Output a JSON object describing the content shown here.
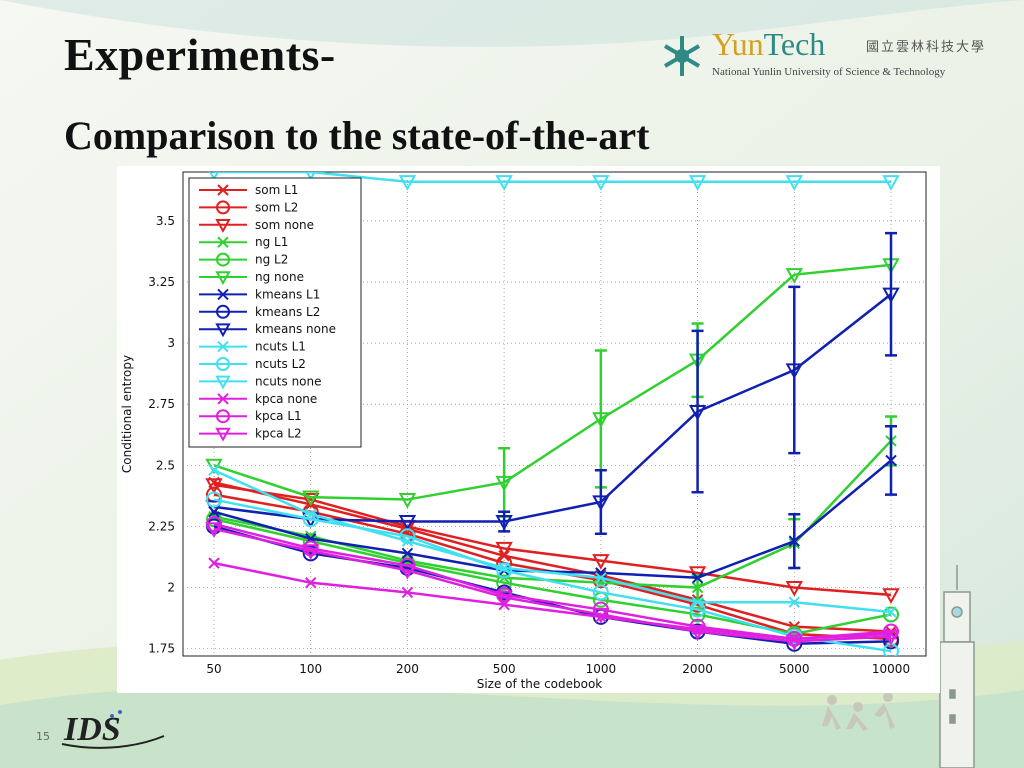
{
  "slide": {
    "title_line1": "Experiments-",
    "title_line2": "Comparison to the state-of-the-art",
    "page_number": "15",
    "logo": {
      "brand_yun": "Yun",
      "brand_tech": "Tech",
      "cn": "國立雲林科技大學",
      "en": "National Yunlin University of Science & Technology"
    }
  },
  "chart_data": {
    "type": "line",
    "xlabel": "Size of the codebook",
    "ylabel": "Conditional entropy",
    "categories": [
      "50",
      "100",
      "200",
      "500",
      "1000",
      "2000",
      "5000",
      "10000"
    ],
    "ylim": [
      1.72,
      3.7
    ],
    "yticks": [
      "1.75",
      "2",
      "2.25",
      "2.5",
      "2.75",
      "3",
      "3.25",
      "3.5"
    ],
    "ytick_values": [
      1.75,
      2.0,
      2.25,
      2.5,
      2.75,
      3.0,
      3.25,
      3.5
    ],
    "grid": true,
    "legend_position": "top-left",
    "series": [
      {
        "name": "som L1",
        "color": "#e02020",
        "marker": "x",
        "values": [
          2.43,
          2.34,
          2.24,
          2.13,
          2.05,
          1.95,
          1.84,
          1.82
        ]
      },
      {
        "name": "som L2",
        "color": "#e02020",
        "marker": "o",
        "values": [
          2.38,
          2.31,
          2.22,
          2.1,
          2.03,
          1.93,
          1.81,
          1.79
        ]
      },
      {
        "name": "som none",
        "color": "#e02020",
        "marker": "v",
        "values": [
          2.42,
          2.36,
          2.25,
          2.16,
          2.11,
          2.06,
          2.0,
          1.97
        ]
      },
      {
        "name": "ng L1",
        "color": "#30d030",
        "marker": "x",
        "values": [
          2.29,
          2.21,
          2.11,
          2.04,
          2.02,
          2.0,
          2.18,
          2.6
        ],
        "err": [
          0,
          0,
          0,
          0,
          0,
          0.05,
          0.1,
          0.1
        ]
      },
      {
        "name": "ng L2",
        "color": "#30d030",
        "marker": "o",
        "values": [
          2.28,
          2.19,
          2.1,
          2.02,
          1.95,
          1.89,
          1.81,
          1.89
        ]
      },
      {
        "name": "ng none",
        "color": "#30d030",
        "marker": "v",
        "values": [
          2.5,
          2.37,
          2.36,
          2.43,
          2.69,
          2.93,
          3.28,
          3.32
        ],
        "err": [
          0,
          0,
          0,
          0.14,
          0.28,
          0.15,
          0,
          0
        ]
      },
      {
        "name": "kmeans L1",
        "color": "#1020b0",
        "marker": "x",
        "values": [
          2.31,
          2.2,
          2.14,
          2.07,
          2.06,
          2.04,
          2.19,
          2.52
        ],
        "err": [
          0,
          0,
          0,
          0,
          0,
          0,
          0.11,
          0.14
        ]
      },
      {
        "name": "kmeans L2",
        "color": "#1020b0",
        "marker": "o",
        "values": [
          2.25,
          2.14,
          2.08,
          1.98,
          1.88,
          1.82,
          1.77,
          1.78
        ]
      },
      {
        "name": "kmeans none",
        "color": "#1020b0",
        "marker": "v",
        "values": [
          2.33,
          2.28,
          2.27,
          2.27,
          2.35,
          2.72,
          2.89,
          3.2
        ],
        "err": [
          0,
          0,
          0,
          0.04,
          0.13,
          0.33,
          0.34,
          0.25
        ]
      },
      {
        "name": "ncuts L1",
        "color": "#40e0f0",
        "marker": "x",
        "values": [
          2.48,
          2.3,
          2.19,
          2.08,
          2.04,
          1.94,
          1.94,
          1.9
        ]
      },
      {
        "name": "ncuts L2",
        "color": "#40e0f0",
        "marker": "o",
        "values": [
          2.36,
          2.28,
          2.21,
          2.07,
          1.98,
          1.91,
          1.8,
          1.74
        ]
      },
      {
        "name": "ncuts none",
        "color": "#40e0f0",
        "marker": "v",
        "values": [
          3.7,
          3.7,
          3.66,
          3.66,
          3.66,
          3.66,
          3.66,
          3.66
        ]
      },
      {
        "name": "kpca none",
        "color": "#e020e0",
        "marker": "x",
        "values": [
          2.1,
          2.02,
          1.98,
          1.93,
          1.88,
          1.83,
          1.79,
          1.81
        ]
      },
      {
        "name": "kpca L1",
        "color": "#e020e0",
        "marker": "o",
        "values": [
          2.26,
          2.16,
          2.09,
          1.97,
          1.91,
          1.84,
          1.79,
          1.82
        ]
      },
      {
        "name": "kpca L2",
        "color": "#e020e0",
        "marker": "v",
        "values": [
          2.24,
          2.15,
          2.07,
          1.96,
          1.89,
          1.82,
          1.78,
          1.8
        ]
      }
    ]
  }
}
